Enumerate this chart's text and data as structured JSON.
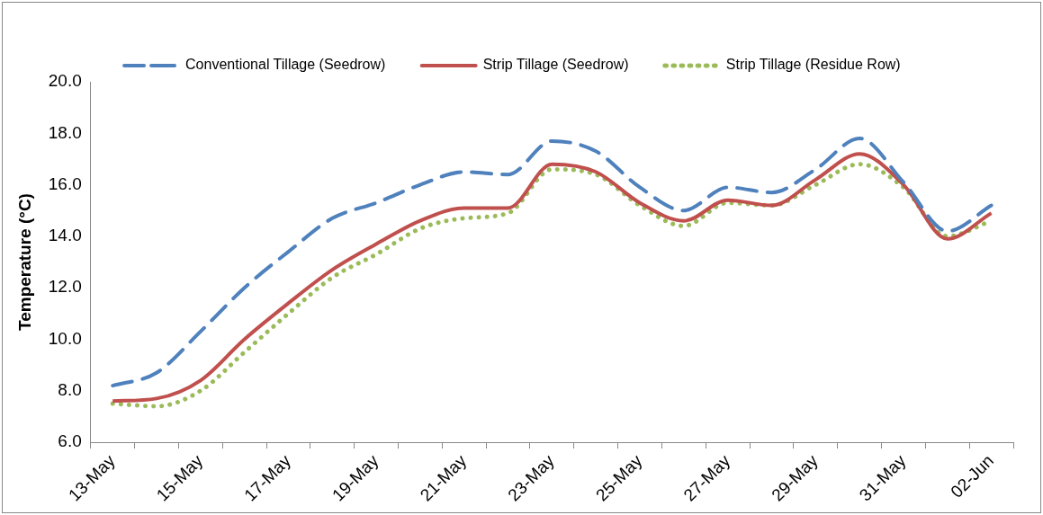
{
  "chart_data": {
    "type": "line",
    "ylabel": "Temperature (°C)",
    "categories": [
      "13-May",
      null,
      "15-May",
      null,
      "17-May",
      null,
      "19-May",
      null,
      "21-May",
      null,
      "23-May",
      null,
      "25-May",
      null,
      "27-May",
      null,
      "29-May",
      null,
      "31-May",
      null,
      "02-Jun"
    ],
    "series": [
      {
        "name": "Conventional Tillage (Seedrow)",
        "color": "#4f81bd",
        "line_style": "dashed",
        "values": [
          8.2,
          8.7,
          10.3,
          12.0,
          13.4,
          14.7,
          15.3,
          16.0,
          16.5,
          16.4,
          17.7,
          17.3,
          15.9,
          15.0,
          15.9,
          15.7,
          16.6,
          17.8,
          16.1,
          14.2,
          15.2
        ]
      },
      {
        "name": "Strip Tillage (Seedrow)",
        "color": "#c0504d",
        "line_style": "solid",
        "values": [
          7.6,
          7.7,
          8.4,
          10.0,
          11.4,
          12.7,
          13.7,
          14.6,
          15.1,
          15.1,
          16.8,
          16.5,
          15.3,
          14.6,
          15.4,
          15.2,
          16.2,
          17.2,
          16.0,
          13.9,
          14.9
        ]
      },
      {
        "name": "Strip Tillage (Residue Row)",
        "color": "#9bbb59",
        "line_style": "dotted",
        "values": [
          7.5,
          7.4,
          8.0,
          9.5,
          11.0,
          12.4,
          13.3,
          14.3,
          14.7,
          14.9,
          16.6,
          16.4,
          15.2,
          14.4,
          15.3,
          15.2,
          16.0,
          16.8,
          15.9,
          14.0,
          14.6
        ]
      }
    ],
    "ylim": [
      6,
      20
    ],
    "yticks": [
      {
        "value": 6,
        "label": "6.0"
      },
      {
        "value": 8,
        "label": "8.0"
      },
      {
        "value": 10,
        "label": "10.0"
      },
      {
        "value": 12,
        "label": "12.0"
      },
      {
        "value": 14,
        "label": "14.0"
      },
      {
        "value": 16,
        "label": "16.0"
      },
      {
        "value": 18,
        "label": "18.0"
      },
      {
        "value": 20,
        "label": "20.0"
      }
    ],
    "grid": false,
    "legend": "top",
    "marker": "none"
  }
}
